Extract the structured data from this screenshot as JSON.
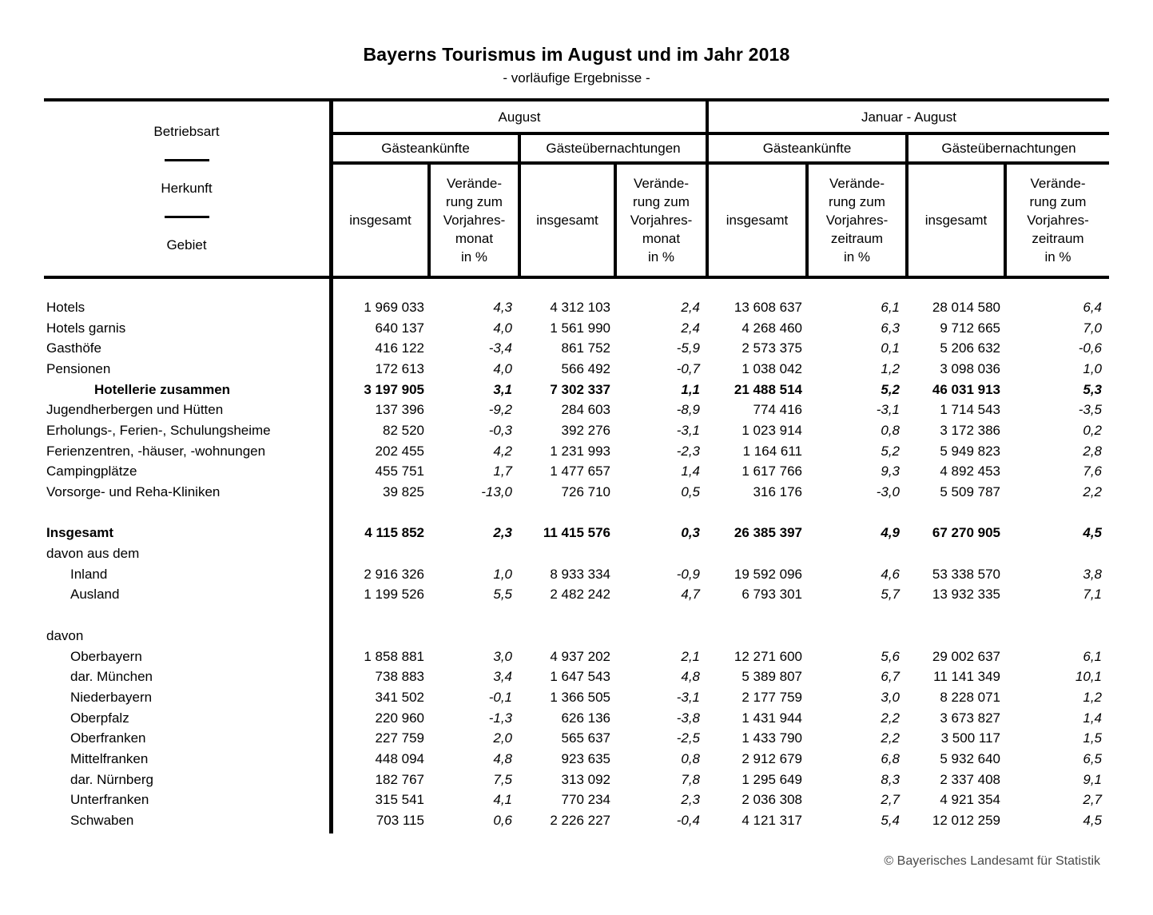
{
  "page": {
    "title": "Bayerns Tourismus im August und im Jahr 2018",
    "subtitle": "- vorläufige Ergebnisse -",
    "copyright": "© Bayerisches Landesamt für Statistik"
  },
  "header": {
    "stub": {
      "line1": "Betriebsart",
      "line2": "Herkunft",
      "line3": "Gebiet"
    },
    "period_groups": [
      {
        "label": "August"
      },
      {
        "label": "Januar - August"
      }
    ],
    "measure_groups": [
      "Gästeankünfte",
      "Gästeübernachtungen",
      "Gästeankünfte",
      "Gästeübernachtungen"
    ],
    "total_label": "insgesamt",
    "change_month": "Verände-\nrung zum\nVorjahres-\nmonat\nin %",
    "change_period": "Verände-\nrung zum\nVorjahres-\nzeitraum\nin %"
  },
  "table": {
    "rows": [
      {
        "label": "Hotels",
        "values": [
          "1 969 033",
          "4,3",
          "4 312 103",
          "2,4",
          "13 608 637",
          "6,1",
          "28 014 580",
          "6,4"
        ]
      },
      {
        "label": "Hotels garnis",
        "values": [
          "640 137",
          "4,0",
          "1 561 990",
          "2,4",
          "4 268 460",
          "6,3",
          "9 712 665",
          "7,0"
        ]
      },
      {
        "label": "Gasthöfe",
        "values": [
          "416 122",
          "-3,4",
          "861 752",
          "-5,9",
          "2 573 375",
          "0,1",
          "5 206 632",
          "-0,6"
        ]
      },
      {
        "label": "Pensionen",
        "values": [
          "172 613",
          "4,0",
          "566 492",
          "-0,7",
          "1 038 042",
          "1,2",
          "3 098 036",
          "1,0"
        ]
      },
      {
        "label": "Hotellerie zusammen",
        "style": "bold",
        "indent": "mid",
        "values": [
          "3 197 905",
          "3,1",
          "7 302 337",
          "1,1",
          "21 488 514",
          "5,2",
          "46 031 913",
          "5,3"
        ]
      },
      {
        "label": "Jugendherbergen und Hütten",
        "values": [
          "137 396",
          "-9,2",
          "284 603",
          "-8,9",
          "774 416",
          "-3,1",
          "1 714 543",
          "-3,5"
        ]
      },
      {
        "label": "Erholungs-, Ferien-, Schulungsheime",
        "values": [
          "82 520",
          "-0,3",
          "392 276",
          "-3,1",
          "1 023 914",
          "0,8",
          "3 172 386",
          "0,2"
        ]
      },
      {
        "label": "Ferienzentren, -häuser, -wohnungen",
        "values": [
          "202 455",
          "4,2",
          "1 231 993",
          "-2,3",
          "1 164 611",
          "5,2",
          "5 949 823",
          "2,8"
        ]
      },
      {
        "label": "Campingplätze",
        "values": [
          "455 751",
          "1,7",
          "1 477 657",
          "1,4",
          "1 617 766",
          "9,3",
          "4 892 453",
          "7,6"
        ]
      },
      {
        "label": "Vorsorge- und Reha-Kliniken",
        "values": [
          "39 825",
          "-13,0",
          "726 710",
          "0,5",
          "316 176",
          "-3,0",
          "5 509 787",
          "2,2"
        ]
      },
      {
        "spacer": true
      },
      {
        "label": "Insgesamt",
        "style": "bold",
        "values": [
          "4 115 852",
          "2,3",
          "11 415 576",
          "0,3",
          "26 385 397",
          "4,9",
          "67 270 905",
          "4,5"
        ]
      },
      {
        "label": "davon aus dem",
        "values": []
      },
      {
        "label": "Inland",
        "indent": "sub",
        "values": [
          "2 916 326",
          "1,0",
          "8 933 334",
          "-0,9",
          "19 592 096",
          "4,6",
          "53 338 570",
          "3,8"
        ]
      },
      {
        "label": "Ausland",
        "indent": "sub",
        "values": [
          "1 199 526",
          "5,5",
          "2 482 242",
          "4,7",
          "6 793 301",
          "5,7",
          "13 932 335",
          "7,1"
        ]
      },
      {
        "spacer": true
      },
      {
        "label": "davon",
        "values": []
      },
      {
        "label": "Oberbayern",
        "indent": "sub",
        "values": [
          "1 858 881",
          "3,0",
          "4 937 202",
          "2,1",
          "12 271 600",
          "5,6",
          "29 002 637",
          "6,1"
        ]
      },
      {
        "label": "dar. München",
        "indent": "sub",
        "values": [
          "738 883",
          "3,4",
          "1 647 543",
          "4,8",
          "5 389 807",
          "6,7",
          "11 141 349",
          "10,1"
        ]
      },
      {
        "label": "Niederbayern",
        "indent": "sub",
        "values": [
          "341 502",
          "-0,1",
          "1 366 505",
          "-3,1",
          "2 177 759",
          "3,0",
          "8 228 071",
          "1,2"
        ]
      },
      {
        "label": "Oberpfalz",
        "indent": "sub",
        "values": [
          "220 960",
          "-1,3",
          "626 136",
          "-3,8",
          "1 431 944",
          "2,2",
          "3 673 827",
          "1,4"
        ]
      },
      {
        "label": "Oberfranken",
        "indent": "sub",
        "values": [
          "227 759",
          "2,0",
          "565 637",
          "-2,5",
          "1 433 790",
          "2,2",
          "3 500 117",
          "1,5"
        ]
      },
      {
        "label": "Mittelfranken",
        "indent": "sub",
        "values": [
          "448 094",
          "4,8",
          "923 635",
          "0,8",
          "2 912 679",
          "6,8",
          "5 932 640",
          "6,5"
        ]
      },
      {
        "label": "dar. Nürnberg",
        "indent": "sub",
        "values": [
          "182 767",
          "7,5",
          "313 092",
          "7,8",
          "1 295 649",
          "8,3",
          "2 337 408",
          "9,1"
        ]
      },
      {
        "label": "Unterfranken",
        "indent": "sub",
        "values": [
          "315 541",
          "4,1",
          "770 234",
          "2,3",
          "2 036 308",
          "2,7",
          "4 921 354",
          "2,7"
        ]
      },
      {
        "label": "Schwaben",
        "indent": "sub",
        "values": [
          "703 115",
          "0,6",
          "2 226 227",
          "-0,4",
          "4 121 317",
          "5,4",
          "12 012 259",
          "4,5"
        ]
      }
    ]
  }
}
